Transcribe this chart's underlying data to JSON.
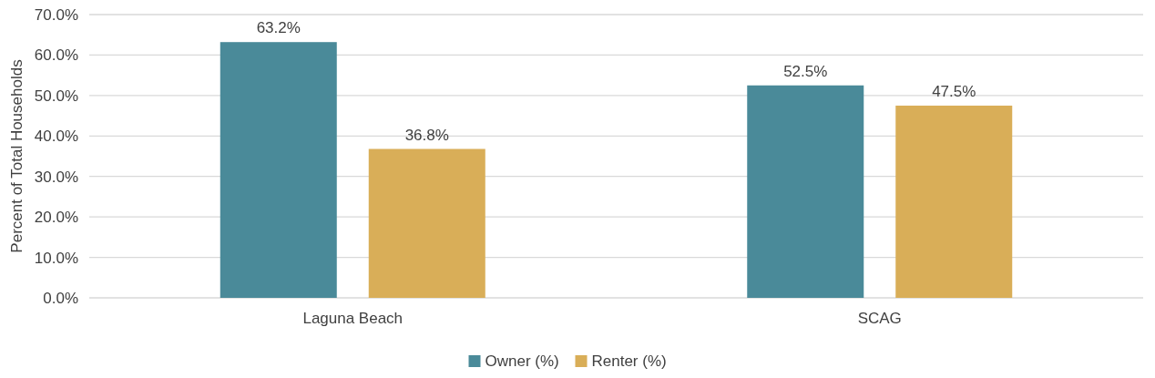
{
  "chart_data": {
    "type": "bar",
    "ylabel": "Percent of Total Households",
    "categories": [
      "Laguna Beach",
      "SCAG"
    ],
    "series": [
      {
        "name": "Owner (%)",
        "color": "#4a8a99",
        "values": [
          63.2,
          52.5
        ],
        "value_labels": [
          "63.2%",
          "52.5%"
        ]
      },
      {
        "name": "Renter (%)",
        "color": "#d9ae58",
        "values": [
          36.8,
          47.5
        ],
        "value_labels": [
          "36.8%",
          "47.5%"
        ]
      }
    ],
    "ylim": [
      0,
      70
    ],
    "yticks": [
      {
        "value": 0,
        "label": "0.0%"
      },
      {
        "value": 10,
        "label": "10.0%"
      },
      {
        "value": 20,
        "label": "20.0%"
      },
      {
        "value": 30,
        "label": "30.0%"
      },
      {
        "value": 40,
        "label": "40.0%"
      },
      {
        "value": 50,
        "label": "50.0%"
      },
      {
        "value": 60,
        "label": "60.0%"
      },
      {
        "value": 70,
        "label": "70.0%"
      }
    ],
    "grid": "y",
    "legend": "bottom"
  }
}
